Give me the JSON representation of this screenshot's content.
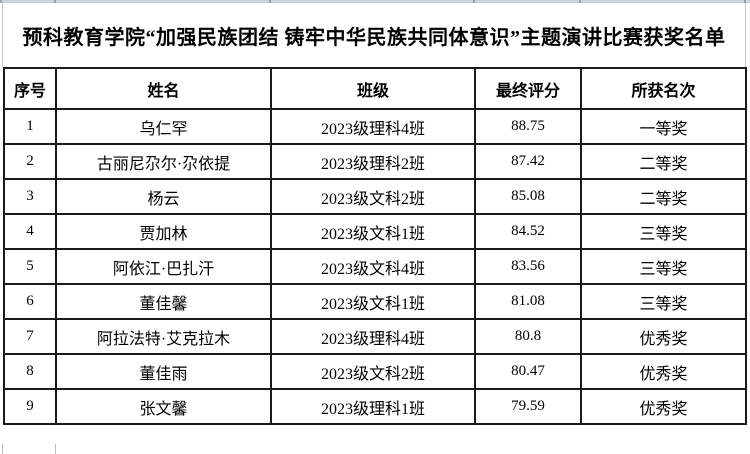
{
  "title": "预科教育学院“加强民族团结 铸牢中华民族共同体意识”主题演讲比赛获奖名单",
  "table": {
    "headers": [
      "序号",
      "姓名",
      "班级",
      "最终评分",
      "所获名次"
    ],
    "rows": [
      [
        "1",
        "乌仁罕",
        "2023级理科4班",
        "88.75",
        "一等奖"
      ],
      [
        "2",
        "古丽尼尕尔·尕依提",
        "2023级理科2班",
        "87.42",
        "二等奖"
      ],
      [
        "3",
        "杨云",
        "2023级文科2班",
        "85.08",
        "二等奖"
      ],
      [
        "4",
        "贾加林",
        "2023级文科1班",
        "84.52",
        "三等奖"
      ],
      [
        "5",
        "阿依江·巴扎汗",
        "2023级文科4班",
        "83.56",
        "三等奖"
      ],
      [
        "6",
        "董佳馨",
        "2023级文科1班",
        "81.08",
        "三等奖"
      ],
      [
        "7",
        "阿拉法特·艾克拉木",
        "2023级理科4班",
        "80.8",
        "优秀奖"
      ],
      [
        "8",
        "董佳雨",
        "2023级文科2班",
        "80.47",
        "优秀奖"
      ],
      [
        "9",
        "张文馨",
        "2023级理科1班",
        "79.59",
        "优秀奖"
      ]
    ]
  },
  "colors": {
    "table_border": "#1b1b1b",
    "top_strip": "#ced2d6",
    "gridline": "#b5bac0",
    "background": "#ffffff",
    "text": "#000000"
  }
}
